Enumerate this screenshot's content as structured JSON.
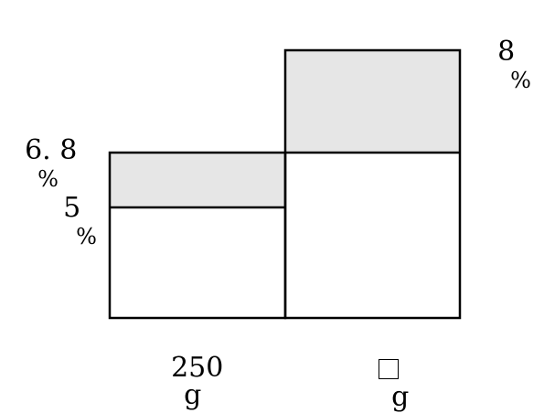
{
  "colors": {
    "shaded": "#e6e6e6",
    "line": "#000000",
    "background": "#ffffff"
  },
  "labels": {
    "corner_paren": ")",
    "pct_left_top_value": "6. 8",
    "pct_left_top_unit": "%",
    "pct_left_bottom_value": "5",
    "pct_left_bottom_unit": "%",
    "pct_right_value": "8",
    "pct_right_unit": "%",
    "weight_left_value": "250",
    "weight_left_unit": "g",
    "weight_right_unit": "g"
  },
  "icons": {
    "unknown": "blank-square-icon"
  }
}
